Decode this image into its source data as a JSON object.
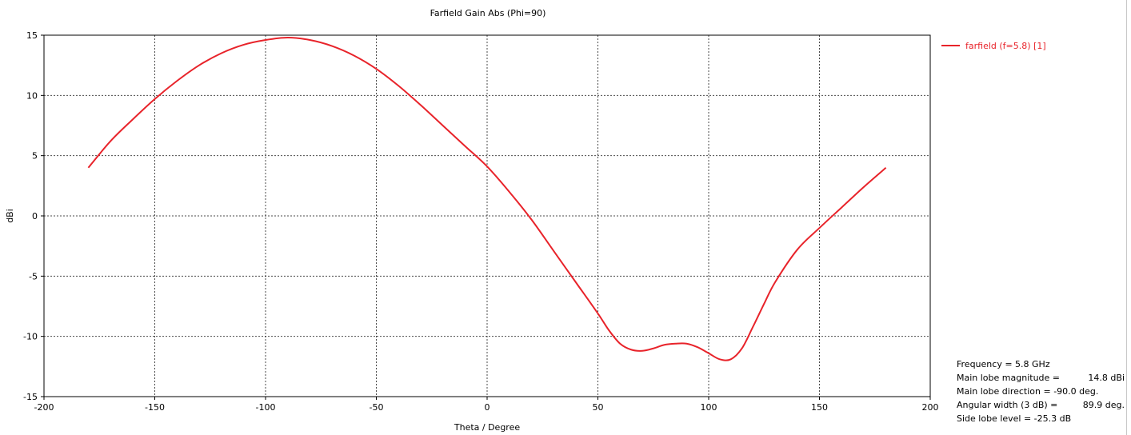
{
  "chart_data": {
    "type": "line",
    "title": "Farfield Gain Abs (Phi=90)",
    "xlabel": "Theta / Degree",
    "ylabel": "dBi",
    "xlim": [
      -200,
      200
    ],
    "ylim": [
      -15,
      15
    ],
    "x_ticks": [
      -200,
      -150,
      -100,
      -50,
      0,
      50,
      100,
      150,
      200
    ],
    "y_ticks": [
      -15,
      -10,
      -5,
      0,
      5,
      10,
      15
    ],
    "grid": true,
    "legend_position": "top-right",
    "series": [
      {
        "name": "farfield (f=5.8) [1]",
        "color": "#e8232a",
        "points": [
          [
            -180,
            4.0
          ],
          [
            -170,
            6.2
          ],
          [
            -160,
            8.0
          ],
          [
            -150,
            9.7
          ],
          [
            -140,
            11.2
          ],
          [
            -130,
            12.5
          ],
          [
            -120,
            13.5
          ],
          [
            -110,
            14.2
          ],
          [
            -100,
            14.6
          ],
          [
            -90,
            14.8
          ],
          [
            -80,
            14.6
          ],
          [
            -70,
            14.1
          ],
          [
            -60,
            13.3
          ],
          [
            -50,
            12.2
          ],
          [
            -40,
            10.8
          ],
          [
            -30,
            9.2
          ],
          [
            -20,
            7.5
          ],
          [
            -10,
            5.8
          ],
          [
            0,
            4.1
          ],
          [
            10,
            2.0
          ],
          [
            20,
            -0.3
          ],
          [
            30,
            -2.9
          ],
          [
            40,
            -5.5
          ],
          [
            50,
            -8.1
          ],
          [
            55,
            -9.5
          ],
          [
            60,
            -10.6
          ],
          [
            65,
            -11.1
          ],
          [
            70,
            -11.2
          ],
          [
            75,
            -11.0
          ],
          [
            80,
            -10.7
          ],
          [
            85,
            -10.6
          ],
          [
            90,
            -10.6
          ],
          [
            95,
            -10.9
          ],
          [
            100,
            -11.4
          ],
          [
            105,
            -11.9
          ],
          [
            110,
            -11.9
          ],
          [
            115,
            -11.0
          ],
          [
            120,
            -9.2
          ],
          [
            125,
            -7.3
          ],
          [
            130,
            -5.5
          ],
          [
            140,
            -2.8
          ],
          [
            150,
            -1.0
          ],
          [
            160,
            0.7
          ],
          [
            170,
            2.4
          ],
          [
            180,
            4.0
          ]
        ]
      }
    ],
    "annotations": {
      "frequency": "Frequency = 5.8 GHz",
      "main_lobe_magnitude_label": "Main lobe magnitude =",
      "main_lobe_magnitude_value": "14.8 dBi",
      "main_lobe_direction": "Main lobe direction = -90.0 deg.",
      "angular_width_label": "Angular width (3 dB) =",
      "angular_width_value": "89.9 deg.",
      "side_lobe_level": "Side lobe level = -25.3 dB"
    }
  }
}
